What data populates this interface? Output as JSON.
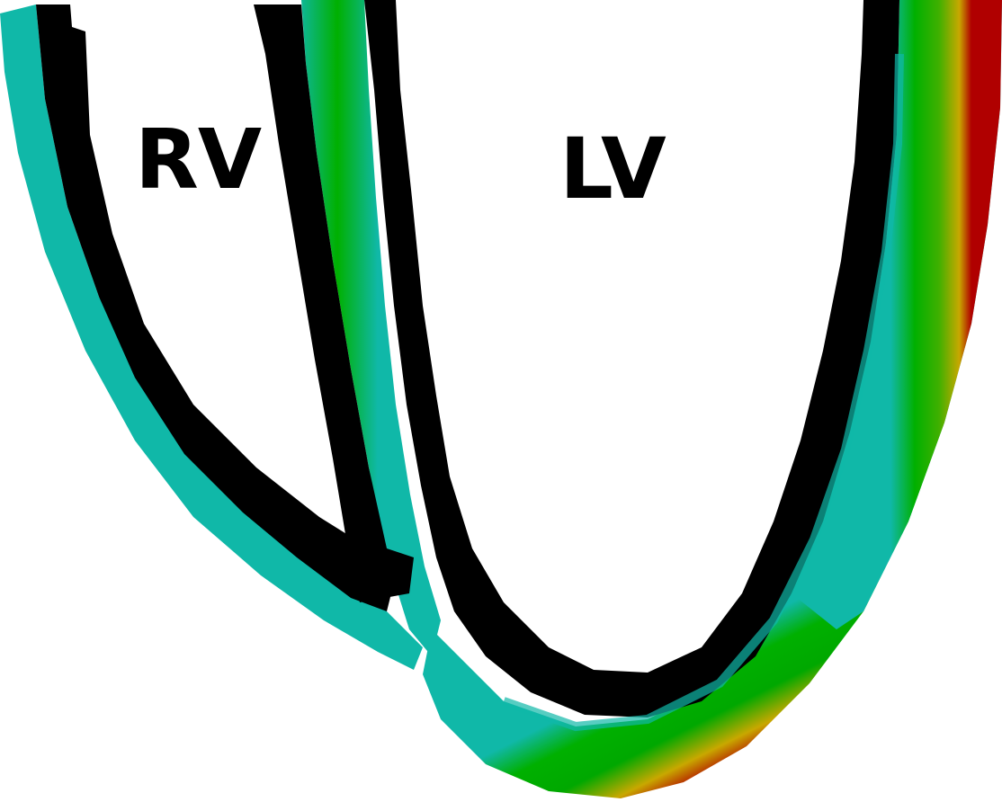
{
  "labels": {
    "rv": "RV",
    "lv": "LV"
  },
  "colors": {
    "background": "#ffffff",
    "endocardium": "#000000",
    "inner_wall": "#10b8a8",
    "mid_wall": "#00b000",
    "outer_wall_lv": "#d4a000",
    "epicardium_lv": "#b00000"
  }
}
